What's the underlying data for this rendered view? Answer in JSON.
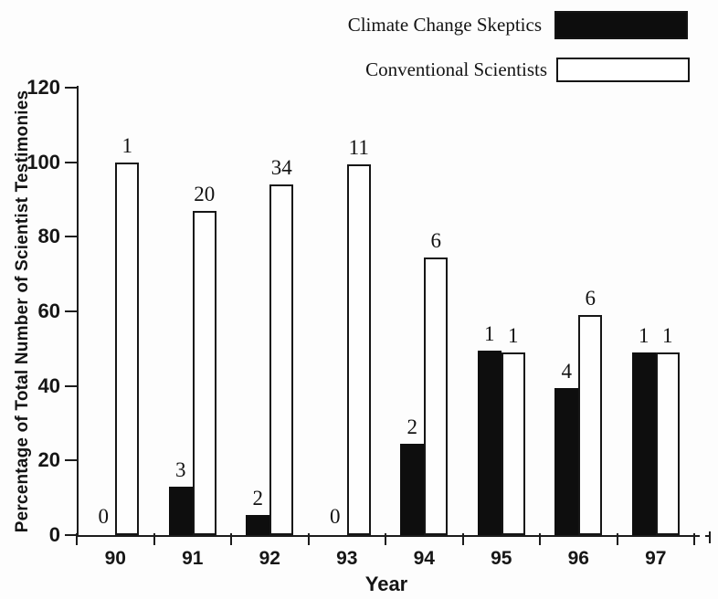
{
  "page": {
    "background": "#fdfdfd"
  },
  "legend": {
    "items": [
      {
        "label": "Climate Change Skeptics",
        "swatch": "black-filled"
      },
      {
        "label": "Conventional Scientists",
        "swatch": "white-outlined"
      }
    ]
  },
  "chart_data": {
    "type": "bar",
    "title": "",
    "xlabel": "Year",
    "ylabel": "Percentage of Total Number of Scientist Testimonies",
    "categories": [
      "90",
      "91",
      "92",
      "93",
      "94",
      "95",
      "96",
      "97"
    ],
    "ylim": [
      0,
      120
    ],
    "yticks": [
      0,
      20,
      40,
      60,
      80,
      100,
      120
    ],
    "grid": false,
    "legend_position": "top-right",
    "series": [
      {
        "name": "Climate Change Skeptics",
        "color": "#0e0e0e",
        "style": "filled",
        "values": [
          0,
          13,
          5.5,
          0,
          24.5,
          49.5,
          39.5,
          49
        ],
        "labels": [
          "0",
          "3",
          "2",
          "0",
          "2",
          "1",
          "4",
          "1"
        ]
      },
      {
        "name": "Conventional Scientists",
        "color": "#ffffff",
        "style": "open",
        "values": [
          100,
          87,
          94,
          99.5,
          74.5,
          49,
          59,
          49
        ],
        "labels": [
          "1",
          "20",
          "34",
          "11",
          "6",
          "1",
          "6",
          "1"
        ]
      }
    ]
  }
}
